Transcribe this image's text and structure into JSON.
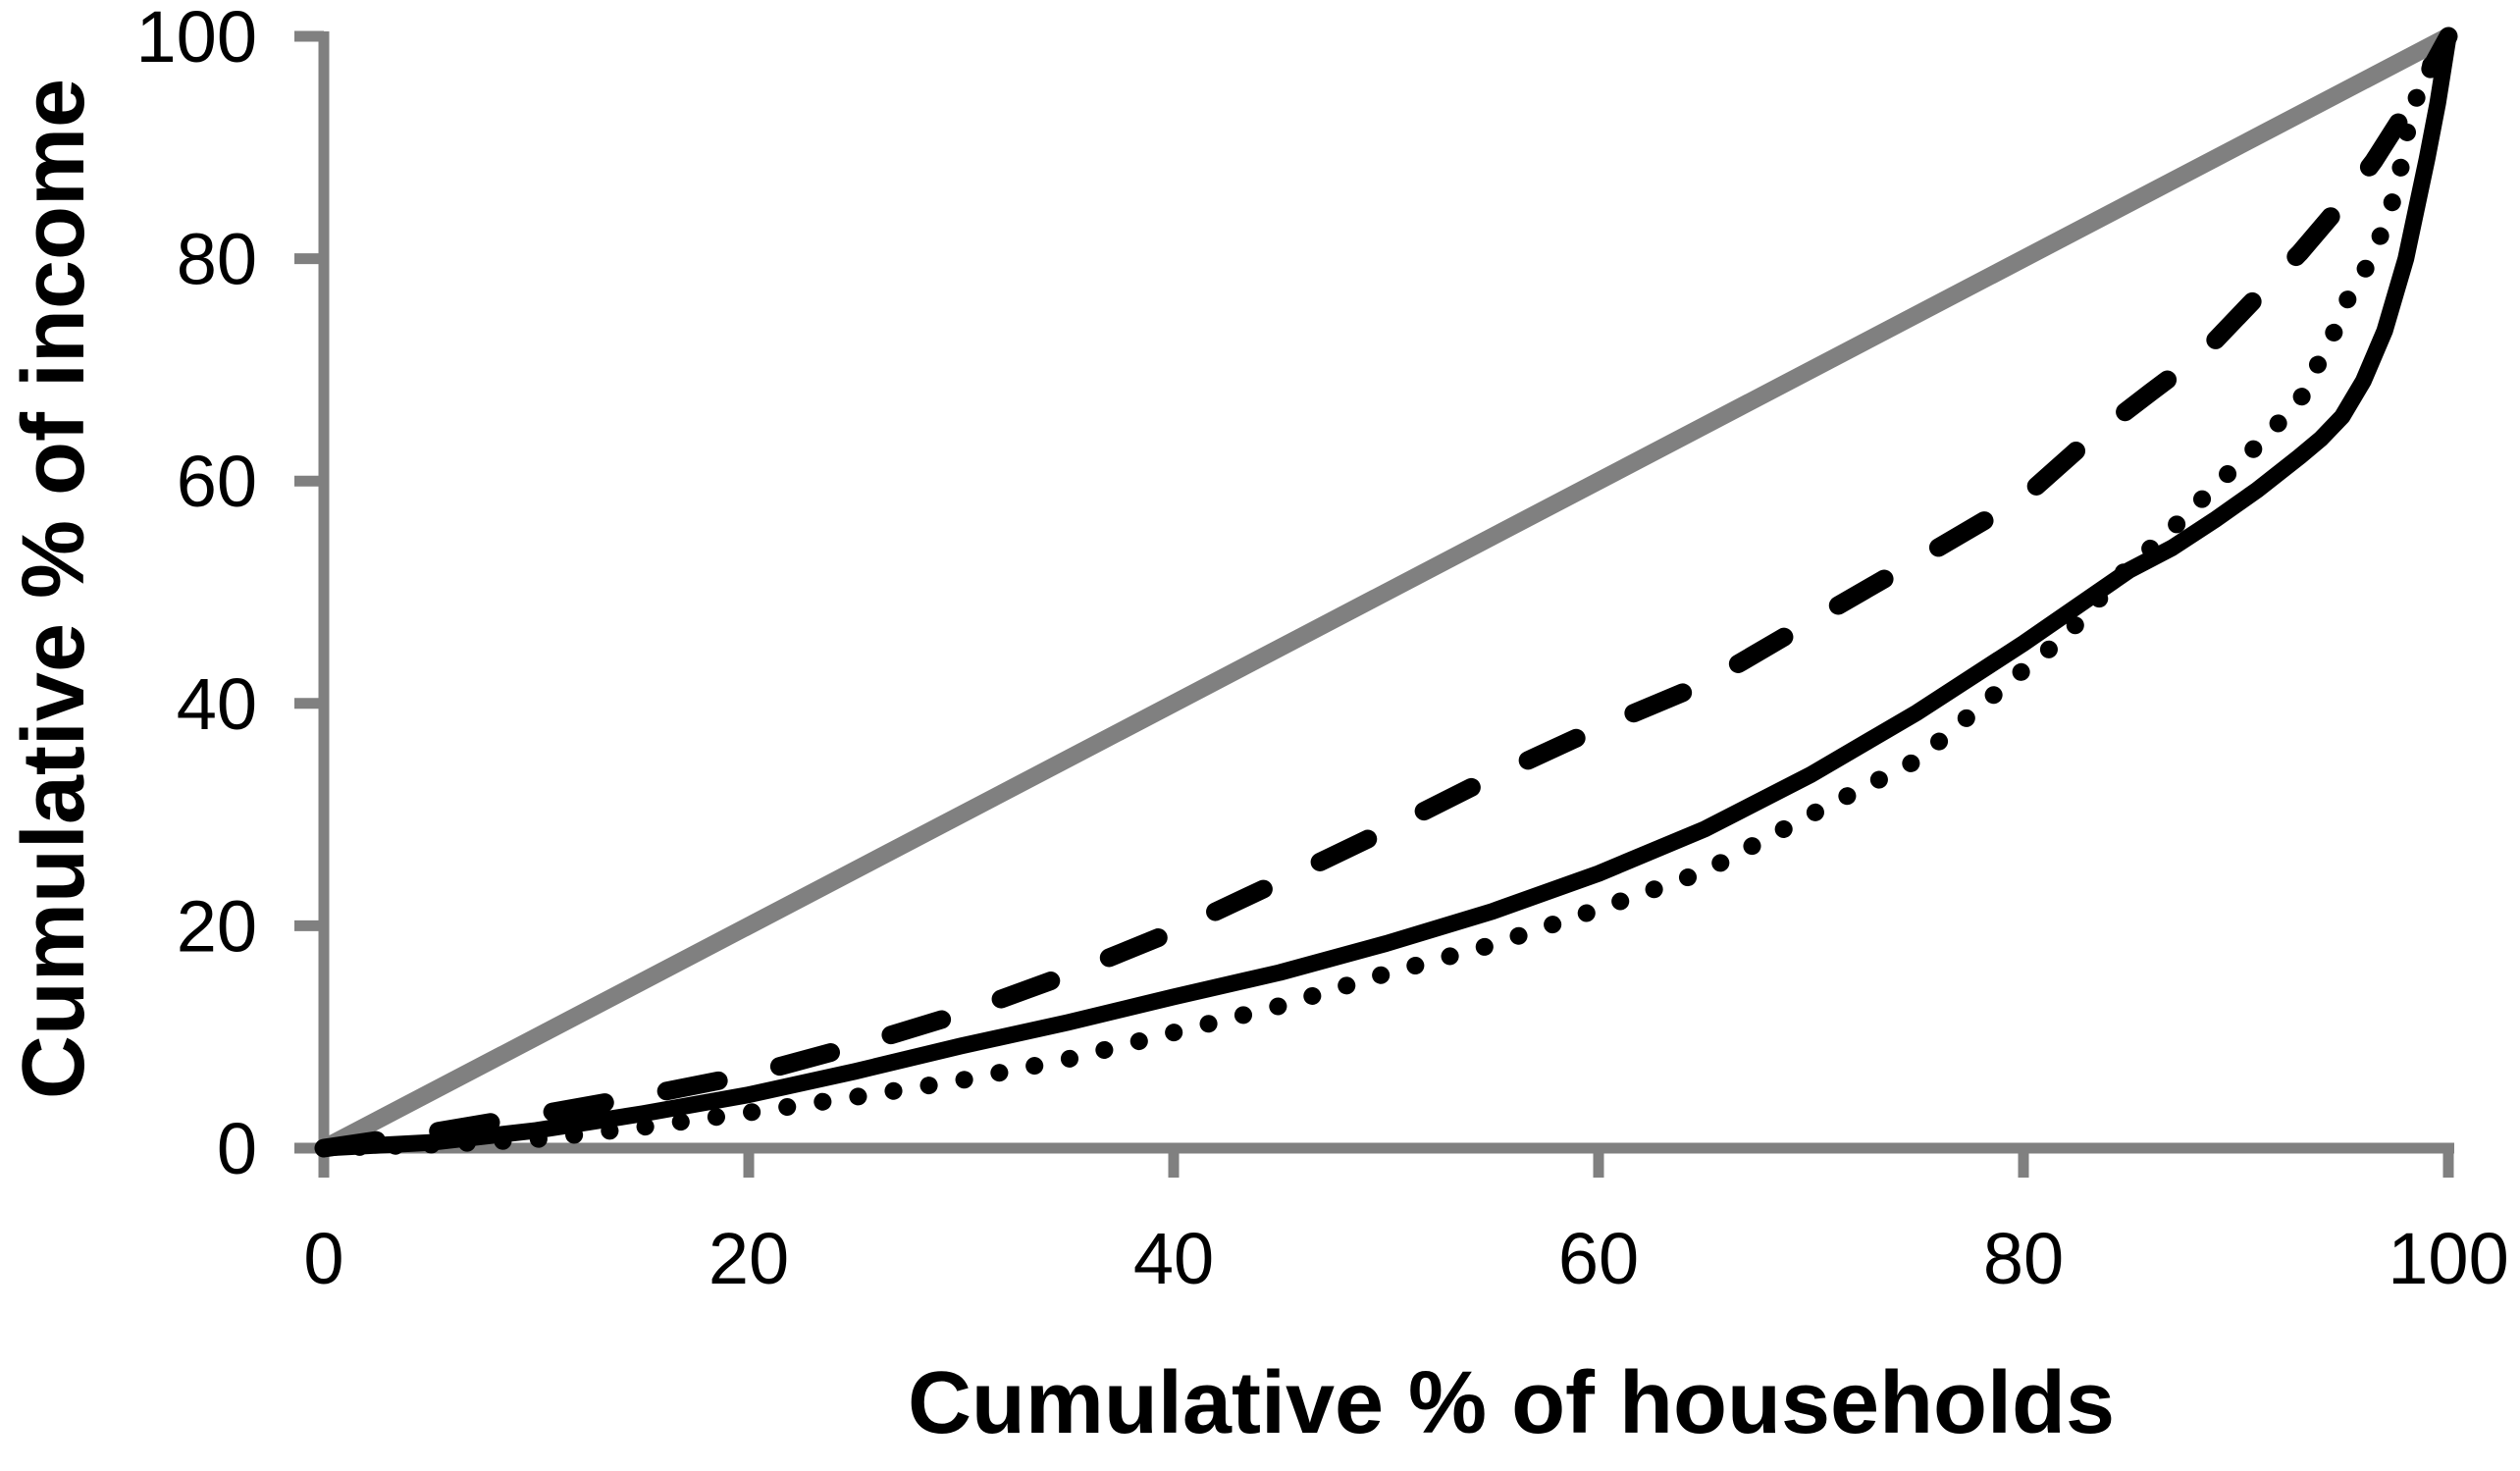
{
  "figure": {
    "background": "#ffffff",
    "axis_color": "#808080",
    "curve_color": "#000000"
  },
  "chart_data": {
    "type": "line",
    "title": "",
    "xlabel": "Cumulative % of households",
    "ylabel": "Cumulative % of income",
    "xlim": [
      0,
      100
    ],
    "ylim": [
      0,
      100
    ],
    "x_ticks": [
      0,
      20,
      40,
      60,
      80,
      100
    ],
    "y_ticks": [
      0,
      20,
      40,
      60,
      80,
      100
    ],
    "x_tick_labels": [
      "0",
      "20",
      "40",
      "60",
      "80",
      "100"
    ],
    "y_tick_labels": [
      "0",
      "20",
      "40",
      "60",
      "80",
      "100"
    ],
    "grid": false,
    "legend_position": "none",
    "series": [
      {
        "name": "line-of-equality",
        "style": "solid",
        "color": "#808080",
        "width": 18,
        "points": [
          [
            0,
            0
          ],
          [
            100,
            100
          ]
        ]
      },
      {
        "name": "lorenz-solid",
        "style": "solid",
        "color": "#000000",
        "width": 17,
        "points": [
          [
            0,
            0
          ],
          [
            5,
            0.5
          ],
          [
            10,
            1.6
          ],
          [
            15,
            3.1
          ],
          [
            20,
            4.8
          ],
          [
            25,
            6.9
          ],
          [
            30,
            9.2
          ],
          [
            35,
            11.3
          ],
          [
            40,
            13.6
          ],
          [
            45,
            15.8
          ],
          [
            50,
            18.4
          ],
          [
            55,
            21.3
          ],
          [
            60,
            24.7
          ],
          [
            65,
            28.7
          ],
          [
            70,
            33.6
          ],
          [
            75,
            39.2
          ],
          [
            80,
            45.4
          ],
          [
            85,
            52.0
          ],
          [
            87,
            54.0
          ],
          [
            89,
            56.5
          ],
          [
            91,
            59.2
          ],
          [
            93,
            62.2
          ],
          [
            94,
            63.8
          ],
          [
            95,
            65.8
          ],
          [
            96,
            69.0
          ],
          [
            97,
            73.5
          ],
          [
            98,
            80.0
          ],
          [
            99,
            89.0
          ],
          [
            99.5,
            94.0
          ],
          [
            100,
            100
          ]
        ]
      },
      {
        "name": "lorenz-dashed",
        "style": "dashed",
        "color": "#000000",
        "width": 19,
        "dash": [
          54,
          64
        ],
        "points": [
          [
            0,
            0
          ],
          [
            5,
            1.4
          ],
          [
            10,
            3.0
          ],
          [
            15,
            4.7
          ],
          [
            20,
            6.6
          ],
          [
            25,
            9.2
          ],
          [
            30,
            12.1
          ],
          [
            35,
            15.6
          ],
          [
            40,
            19.5
          ],
          [
            45,
            24.0
          ],
          [
            50,
            28.6
          ],
          [
            55,
            33.4
          ],
          [
            60,
            37.8
          ],
          [
            65,
            41.8
          ],
          [
            70,
            47.4
          ],
          [
            75,
            52.9
          ],
          [
            80,
            58.5
          ],
          [
            83,
            63.6
          ],
          [
            86,
            68.0
          ],
          [
            88.5,
            71.6
          ],
          [
            91,
            76.6
          ],
          [
            93,
            80.5
          ],
          [
            95,
            85.0
          ],
          [
            96.5,
            88.8
          ],
          [
            98,
            93.3
          ],
          [
            99,
            96.5
          ],
          [
            100,
            100
          ]
        ]
      },
      {
        "name": "lorenz-dotted",
        "style": "dotted",
        "color": "#000000",
        "width": 18,
        "dash": [
          0.1,
          36.4
        ],
        "points": [
          [
            0,
            0
          ],
          [
            5,
            0.3
          ],
          [
            10,
            0.8
          ],
          [
            15,
            1.9
          ],
          [
            20,
            3.2
          ],
          [
            25,
            4.6
          ],
          [
            30,
            6.1
          ],
          [
            35,
            8.0
          ],
          [
            40,
            10.4
          ],
          [
            45,
            12.8
          ],
          [
            50,
            15.7
          ],
          [
            55,
            18.3
          ],
          [
            60,
            21.5
          ],
          [
            65,
            24.9
          ],
          [
            70,
            30.0
          ],
          [
            75,
            34.9
          ],
          [
            78,
            39.8
          ],
          [
            80,
            43.0
          ],
          [
            82,
            46.1
          ],
          [
            84.6,
            51.6
          ],
          [
            87,
            55.7
          ],
          [
            89,
            59.5
          ],
          [
            91,
            63.2
          ],
          [
            93,
            67.2
          ],
          [
            94.7,
            73.7
          ],
          [
            95.4,
            77.0
          ],
          [
            96.3,
            79.7
          ],
          [
            97,
            83.0
          ],
          [
            97.6,
            86.5
          ],
          [
            98.1,
            91.8
          ],
          [
            98.6,
            95.1
          ],
          [
            99.2,
            97.5
          ],
          [
            100,
            100
          ]
        ]
      }
    ]
  }
}
